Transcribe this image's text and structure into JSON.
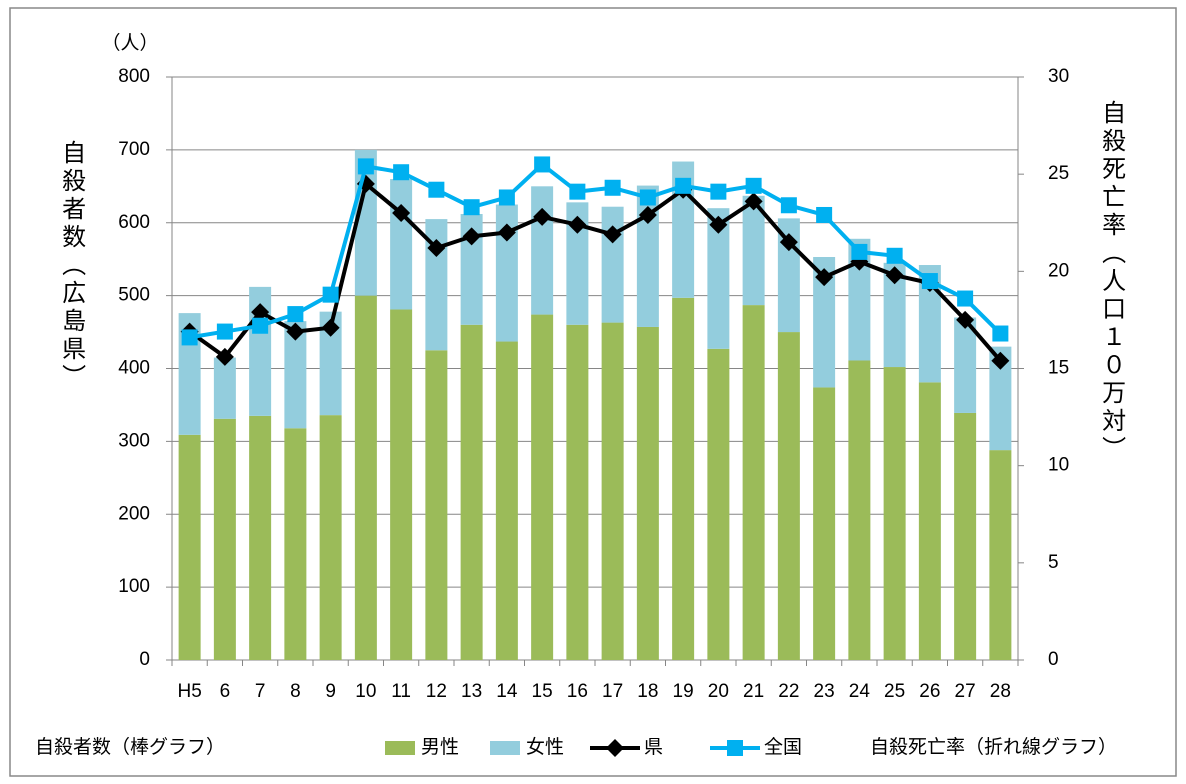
{
  "chart_data": {
    "type": "bar_line_combo",
    "unit_label": "（人）",
    "y_axis_title": "自殺者数（広島県）",
    "y2_axis_title": "自殺死亡率（人口１０万対）",
    "legend_note_bars": "自殺者数（棒グラフ）",
    "legend_note_lines": "自殺死亡率（折れ線グラフ）",
    "categories": [
      "H5",
      "6",
      "7",
      "8",
      "9",
      "10",
      "11",
      "12",
      "13",
      "14",
      "15",
      "16",
      "17",
      "18",
      "19",
      "20",
      "21",
      "22",
      "23",
      "24",
      "25",
      "26",
      "27",
      "28"
    ],
    "ylim": [
      0,
      800
    ],
    "yticks": [
      0,
      100,
      200,
      300,
      400,
      500,
      600,
      700,
      800
    ],
    "y2lim": [
      0,
      30
    ],
    "y2ticks": [
      0,
      5,
      10,
      15,
      20,
      25,
      30
    ],
    "grid": true,
    "series": [
      {
        "name": "男性",
        "kind": "bar",
        "color": "#9bbb59",
        "values": [
          309,
          331,
          335,
          318,
          336,
          500,
          481,
          425,
          460,
          437,
          474,
          460,
          463,
          457,
          497,
          427,
          487,
          450,
          374,
          411,
          402,
          381,
          339,
          288
        ]
      },
      {
        "name": "女性",
        "kind": "bar",
        "color": "#93cddd",
        "values": [
          167,
          84,
          177,
          147,
          142,
          200,
          179,
          180,
          152,
          188,
          176,
          168,
          159,
          194,
          187,
          193,
          150,
          156,
          179,
          167,
          143,
          161,
          131,
          142
        ]
      },
      {
        "name": "県",
        "kind": "line",
        "axis": "y2",
        "marker": "diamond",
        "color": "#000000",
        "values": [
          16.9,
          15.6,
          17.9,
          16.9,
          17.1,
          24.5,
          23.0,
          21.2,
          21.8,
          22.0,
          22.8,
          22.4,
          21.9,
          22.9,
          24.2,
          22.4,
          23.6,
          21.5,
          19.7,
          20.5,
          19.8,
          19.4,
          17.5,
          15.4
        ]
      },
      {
        "name": "全国",
        "kind": "line",
        "axis": "y2",
        "marker": "square",
        "color": "#00b0f0",
        "values": [
          16.6,
          16.9,
          17.2,
          17.8,
          18.8,
          25.4,
          25.1,
          24.2,
          23.3,
          23.8,
          25.5,
          24.1,
          24.3,
          23.8,
          24.4,
          24.1,
          24.4,
          23.4,
          22.9,
          21.0,
          20.8,
          19.5,
          18.6,
          16.8
        ]
      }
    ]
  }
}
